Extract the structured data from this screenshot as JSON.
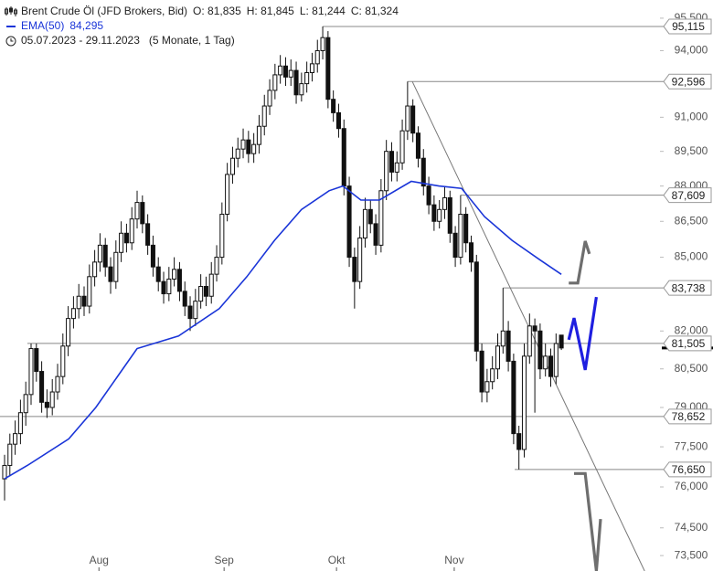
{
  "chart_data": {
    "type": "candlestick",
    "title": "Brent Crude Öl (JFD Brokers, Bid)",
    "ohlc_labels": [
      "O: 81,835",
      "H: 81,845",
      "L: 81,244",
      "C: 81,324"
    ],
    "date_range": "05.07.2023 - 29.11.2023",
    "period": "(5 Monate, 1 Tag)",
    "log_scale": true,
    "xlim": [
      -0.86,
      123.6
    ],
    "ylim": [
      72950,
      96350
    ],
    "xticks": [
      {
        "value": 17.8,
        "label": "Aug"
      },
      {
        "value": 41.4,
        "label": "Sep"
      },
      {
        "value": 62.6,
        "label": "Okt"
      },
      {
        "value": 84.8,
        "label": "Nov"
      }
    ],
    "yticks": [
      {
        "value": 95500,
        "label": "95,500"
      },
      {
        "value": 94000,
        "label": "94,000"
      },
      {
        "value": 91000,
        "label": "91,000"
      },
      {
        "value": 89500,
        "label": "89,500"
      },
      {
        "value": 88000,
        "label": "88,000"
      },
      {
        "value": 86500,
        "label": "86,500"
      },
      {
        "value": 85000,
        "label": "85,000"
      },
      {
        "value": 82000,
        "label": "82,000"
      },
      {
        "value": 80500,
        "label": "80,500"
      },
      {
        "value": 79000,
        "label": "79,000"
      },
      {
        "value": 77500,
        "label": "77,500"
      },
      {
        "value": 76000,
        "label": "76,000"
      },
      {
        "value": 74500,
        "label": "74,500"
      },
      {
        "value": 73500,
        "label": "73,500"
      }
    ],
    "up_color": "#ffffff",
    "down_color": "#111111",
    "open": [
      76300,
      76800,
      77600,
      78000,
      78800,
      79500,
      81300,
      80400,
      79200,
      79000,
      79600,
      80200,
      81400,
      82500,
      82900,
      83400,
      83000,
      84200,
      84800,
      85500,
      84600,
      84000,
      85200,
      86000,
      85600,
      86600,
      87300,
      86400,
      85500,
      84600,
      84000,
      83500,
      84100,
      84500,
      83600,
      83000,
      82500,
      83200,
      83800,
      83400,
      84300,
      85000,
      86800,
      88500,
      89200,
      89600,
      90000,
      89400,
      89800,
      90600,
      91500,
      92200,
      92900,
      93300,
      92800,
      93100,
      92000,
      92500,
      93000,
      93400,
      94000,
      94600,
      91800,
      91200,
      90500,
      88000,
      85000,
      84000,
      85800,
      87000,
      86400,
      85500,
      87800,
      89500,
      88600,
      89000,
      90400,
      91500,
      90300,
      89200,
      88000,
      87200,
      86500,
      87000,
      87500,
      86000,
      85000,
      86800,
      85600,
      84800,
      81200,
      79600,
      80000,
      80500,
      81400,
      82000,
      80800,
      78000,
      77400,
      81000,
      82200,
      82000,
      80500,
      81000,
      80200,
      81835
    ],
    "high": [
      77200,
      78000,
      78500,
      79300,
      80000,
      81500,
      81500,
      80800,
      79700,
      80100,
      80700,
      81900,
      83000,
      83400,
      83900,
      83800,
      84700,
      85300,
      86000,
      85800,
      85000,
      85700,
      86500,
      86400,
      87100,
      87800,
      87600,
      86800,
      85900,
      85000,
      84400,
      84600,
      85000,
      84800,
      84000,
      83400,
      83700,
      84300,
      84200,
      84800,
      85500,
      87300,
      89000,
      89700,
      90100,
      90500,
      90400,
      90300,
      91100,
      92000,
      92700,
      93400,
      93800,
      93700,
      93600,
      93500,
      93000,
      93500,
      93900,
      94500,
      95115,
      94900,
      92200,
      91600,
      90900,
      88400,
      85400,
      86300,
      87500,
      87400,
      86800,
      88300,
      90000,
      89900,
      89500,
      90900,
      92596,
      91800,
      90600,
      89600,
      88400,
      87600,
      87400,
      88000,
      87800,
      86300,
      87609,
      87100,
      85900,
      85100,
      81500,
      80500,
      81000,
      81900,
      83738,
      82400,
      81100,
      78300,
      81500,
      82700,
      82500,
      82300,
      81500,
      81300,
      81900,
      81845
    ],
    "low": [
      75500,
      76400,
      77200,
      77600,
      78300,
      79100,
      80000,
      78800,
      78600,
      78700,
      79300,
      79900,
      81000,
      82100,
      82500,
      82600,
      82700,
      83800,
      84400,
      84200,
      83500,
      83700,
      84800,
      85200,
      85300,
      86200,
      86000,
      85100,
      84200,
      83600,
      83100,
      83200,
      83800,
      83200,
      82600,
      82000,
      82200,
      82900,
      83000,
      83100,
      84000,
      84700,
      86500,
      88100,
      88800,
      89200,
      89000,
      89000,
      89400,
      90200,
      91100,
      91800,
      92500,
      92400,
      92400,
      91600,
      91700,
      92100,
      92600,
      93000,
      93600,
      91400,
      90800,
      90100,
      87600,
      84600,
      82900,
      83700,
      85400,
      86000,
      85100,
      85200,
      87400,
      88200,
      88200,
      88700,
      90000,
      89900,
      88800,
      87600,
      86800,
      86100,
      86200,
      86600,
      85600,
      84600,
      84700,
      85200,
      84400,
      80800,
      79200,
      79200,
      79700,
      80100,
      81100,
      80400,
      77600,
      76650,
      77100,
      80700,
      78800,
      80100,
      80200,
      79800,
      79900,
      81244
    ],
    "close": [
      76800,
      77600,
      78000,
      78800,
      79500,
      81300,
      80400,
      79200,
      79000,
      79600,
      80200,
      81400,
      82500,
      82900,
      83400,
      83000,
      84200,
      84800,
      85500,
      84600,
      84000,
      85200,
      86000,
      85600,
      86600,
      87300,
      86400,
      85500,
      84600,
      84000,
      83500,
      84100,
      84500,
      83600,
      83000,
      82500,
      83200,
      83800,
      83400,
      84300,
      85000,
      86800,
      88500,
      89200,
      89600,
      90000,
      89400,
      89800,
      90600,
      91500,
      92200,
      92900,
      93300,
      92800,
      93100,
      92000,
      92500,
      93000,
      93400,
      94000,
      94600,
      91800,
      91200,
      90500,
      88000,
      85000,
      84000,
      85800,
      87000,
      86400,
      85500,
      87800,
      89500,
      88600,
      89000,
      90400,
      91500,
      90300,
      89200,
      88000,
      87200,
      86500,
      87000,
      87500,
      86000,
      85000,
      86800,
      85600,
      84800,
      81200,
      79600,
      80000,
      80500,
      81400,
      82000,
      80800,
      78000,
      77400,
      81000,
      82200,
      82000,
      80500,
      81000,
      80200,
      81500,
      81324
    ],
    "ema": {
      "name": "EMA(50)",
      "value_label": "84,295",
      "color": "#1a35d8",
      "x": [
        0,
        4.3,
        12.1,
        17.2,
        25,
        32.8,
        40.5,
        45.7,
        50.9,
        56,
        61.2,
        63.8,
        67.2,
        70.7,
        76.7,
        81.9,
        86.2,
        90.5,
        95.7,
        100.9,
        105
      ],
      "values": [
        76300,
        76800,
        77800,
        79000,
        81300,
        81800,
        82900,
        84200,
        85700,
        87000,
        87800,
        88000,
        87400,
        87400,
        88200,
        88000,
        87900,
        86700,
        85700,
        84900,
        84295
      ]
    },
    "levels": [
      {
        "value": 95115,
        "label": "95,115",
        "from": 60
      },
      {
        "value": 92596,
        "label": "92,596",
        "from": 76
      },
      {
        "value": 87609,
        "label": "87,609",
        "from": 86
      },
      {
        "value": 83738,
        "label": "83,738",
        "from": 94
      },
      {
        "value": 81505,
        "label": "81,505",
        "from": 4.3
      },
      {
        "value": 78652,
        "label": "78,652",
        "from": -0.86
      },
      {
        "value": 76650,
        "label": "76,650",
        "from": 96.2
      }
    ],
    "level_color": "#888888",
    "trendline": {
      "color": "#777777",
      "x": [
        76.9,
        120.7
      ],
      "values": [
        92596,
        72950
      ]
    },
    "forecasts": [
      {
        "color": "#6e6e6e",
        "x": [
          106.4,
          108.1,
          109.5,
          110.3
        ],
        "values": [
          83940,
          83940,
          85670,
          85140
        ]
      },
      {
        "color": "#1f1fe0",
        "x": [
          106.4,
          107.4,
          109.5,
          111.6
        ],
        "values": [
          81650,
          82520,
          80460,
          83370
        ]
      },
      {
        "color": "#6e6e6e",
        "x": [
          107.4,
          109.5,
          111.6,
          112.4
        ],
        "values": [
          76500,
          76500,
          72950,
          74820
        ]
      }
    ]
  }
}
